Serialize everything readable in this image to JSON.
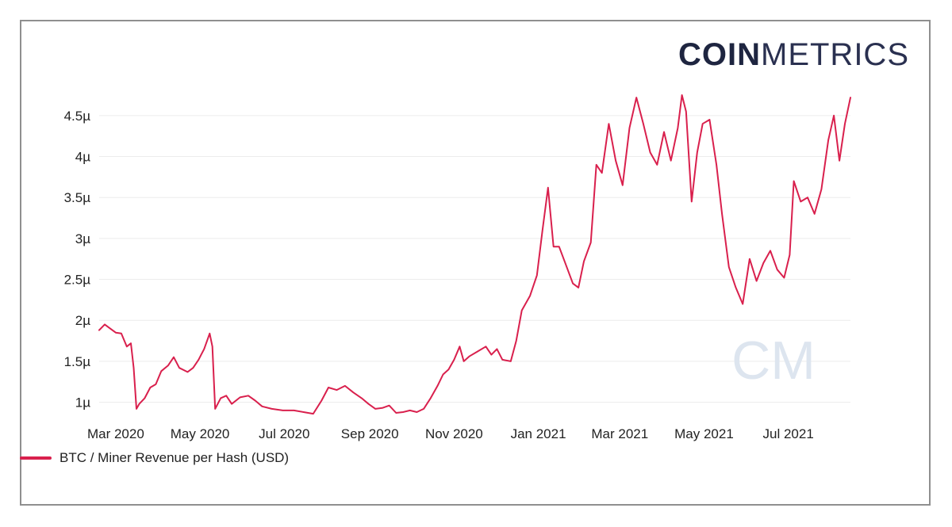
{
  "logo": {
    "bold": "COIN",
    "light": "METRICS",
    "color": "#1e2540"
  },
  "watermark": {
    "text": "CM",
    "color": "#dde5ef"
  },
  "chart_data": {
    "type": "line",
    "title": "",
    "xlabel": "",
    "ylabel": "",
    "x_tick_labels": [
      "Mar 2020",
      "May 2020",
      "Jul 2020",
      "Sep 2020",
      "Nov 2020",
      "Jan 2021",
      "Mar 2021",
      "May 2021",
      "Jul 2021"
    ],
    "y_tick_labels": [
      "1µ",
      "1.5µ",
      "2µ",
      "2.5µ",
      "3µ",
      "3.5µ",
      "4µ",
      "4.5µ"
    ],
    "y_tick_values": [
      1.0,
      1.5,
      2.0,
      2.5,
      3.0,
      3.5,
      4.0,
      4.5
    ],
    "x_start": "2020-02-18",
    "x_end": "2021-08-15",
    "ylim": [
      0.88,
      4.75
    ],
    "y_unit": "µ",
    "grid": true,
    "legend_position": "bottom-left",
    "series": [
      {
        "name": "BTC / Miner Revenue per Hash (USD)",
        "color": "#d9204d",
        "points": [
          [
            "2020-02-18",
            1.88
          ],
          [
            "2020-02-22",
            1.95
          ],
          [
            "2020-02-26",
            1.9
          ],
          [
            "2020-03-01",
            1.85
          ],
          [
            "2020-03-05",
            1.84
          ],
          [
            "2020-03-09",
            1.68
          ],
          [
            "2020-03-12",
            1.72
          ],
          [
            "2020-03-14",
            1.42
          ],
          [
            "2020-03-16",
            0.92
          ],
          [
            "2020-03-18",
            0.98
          ],
          [
            "2020-03-22",
            1.05
          ],
          [
            "2020-03-26",
            1.18
          ],
          [
            "2020-03-30",
            1.22
          ],
          [
            "2020-04-03",
            1.38
          ],
          [
            "2020-04-08",
            1.45
          ],
          [
            "2020-04-12",
            1.55
          ],
          [
            "2020-04-16",
            1.42
          ],
          [
            "2020-04-22",
            1.37
          ],
          [
            "2020-04-26",
            1.42
          ],
          [
            "2020-04-30",
            1.52
          ],
          [
            "2020-05-04",
            1.65
          ],
          [
            "2020-05-08",
            1.84
          ],
          [
            "2020-05-10",
            1.68
          ],
          [
            "2020-05-12",
            0.92
          ],
          [
            "2020-05-16",
            1.05
          ],
          [
            "2020-05-20",
            1.08
          ],
          [
            "2020-05-24",
            0.98
          ],
          [
            "2020-05-30",
            1.06
          ],
          [
            "2020-06-05",
            1.08
          ],
          [
            "2020-06-10",
            1.02
          ],
          [
            "2020-06-15",
            0.95
          ],
          [
            "2020-06-22",
            0.92
          ],
          [
            "2020-06-30",
            0.9
          ],
          [
            "2020-07-08",
            0.9
          ],
          [
            "2020-07-15",
            0.88
          ],
          [
            "2020-07-22",
            0.86
          ],
          [
            "2020-07-28",
            1.02
          ],
          [
            "2020-08-02",
            1.18
          ],
          [
            "2020-08-08",
            1.15
          ],
          [
            "2020-08-14",
            1.2
          ],
          [
            "2020-08-20",
            1.12
          ],
          [
            "2020-08-26",
            1.05
          ],
          [
            "2020-08-31",
            0.98
          ],
          [
            "2020-09-05",
            0.92
          ],
          [
            "2020-09-10",
            0.93
          ],
          [
            "2020-09-15",
            0.96
          ],
          [
            "2020-09-20",
            0.87
          ],
          [
            "2020-09-25",
            0.88
          ],
          [
            "2020-09-30",
            0.9
          ],
          [
            "2020-10-05",
            0.88
          ],
          [
            "2020-10-10",
            0.92
          ],
          [
            "2020-10-15",
            1.05
          ],
          [
            "2020-10-20",
            1.2
          ],
          [
            "2020-10-24",
            1.34
          ],
          [
            "2020-10-28",
            1.4
          ],
          [
            "2020-11-01",
            1.52
          ],
          [
            "2020-11-05",
            1.68
          ],
          [
            "2020-11-08",
            1.5
          ],
          [
            "2020-11-12",
            1.56
          ],
          [
            "2020-11-18",
            1.62
          ],
          [
            "2020-11-24",
            1.68
          ],
          [
            "2020-11-28",
            1.58
          ],
          [
            "2020-12-02",
            1.65
          ],
          [
            "2020-12-06",
            1.52
          ],
          [
            "2020-12-12",
            1.5
          ],
          [
            "2020-12-16",
            1.75
          ],
          [
            "2020-12-20",
            2.12
          ],
          [
            "2020-12-26",
            2.3
          ],
          [
            "2020-12-31",
            2.55
          ],
          [
            "2021-01-04",
            3.1
          ],
          [
            "2021-01-08",
            3.62
          ],
          [
            "2021-01-12",
            2.9
          ],
          [
            "2021-01-16",
            2.9
          ],
          [
            "2021-01-20",
            2.72
          ],
          [
            "2021-01-26",
            2.45
          ],
          [
            "2021-01-30",
            2.4
          ],
          [
            "2021-02-03",
            2.72
          ],
          [
            "2021-02-08",
            2.95
          ],
          [
            "2021-02-12",
            3.9
          ],
          [
            "2021-02-16",
            3.8
          ],
          [
            "2021-02-21",
            4.4
          ],
          [
            "2021-02-26",
            3.95
          ],
          [
            "2021-03-03",
            3.65
          ],
          [
            "2021-03-08",
            4.35
          ],
          [
            "2021-03-13",
            4.72
          ],
          [
            "2021-03-18",
            4.4
          ],
          [
            "2021-03-23",
            4.05
          ],
          [
            "2021-03-28",
            3.9
          ],
          [
            "2021-04-02",
            4.3
          ],
          [
            "2021-04-07",
            3.95
          ],
          [
            "2021-04-12",
            4.35
          ],
          [
            "2021-04-15",
            4.75
          ],
          [
            "2021-04-18",
            4.55
          ],
          [
            "2021-04-22",
            3.45
          ],
          [
            "2021-04-26",
            4.05
          ],
          [
            "2021-04-30",
            4.4
          ],
          [
            "2021-05-05",
            4.45
          ],
          [
            "2021-05-10",
            3.9
          ],
          [
            "2021-05-14",
            3.3
          ],
          [
            "2021-05-19",
            2.65
          ],
          [
            "2021-05-24",
            2.4
          ],
          [
            "2021-05-29",
            2.2
          ],
          [
            "2021-06-03",
            2.75
          ],
          [
            "2021-06-08",
            2.48
          ],
          [
            "2021-06-13",
            2.7
          ],
          [
            "2021-06-18",
            2.85
          ],
          [
            "2021-06-23",
            2.62
          ],
          [
            "2021-06-28",
            2.52
          ],
          [
            "2021-07-02",
            2.8
          ],
          [
            "2021-07-05",
            3.7
          ],
          [
            "2021-07-10",
            3.45
          ],
          [
            "2021-07-15",
            3.5
          ],
          [
            "2021-07-20",
            3.3
          ],
          [
            "2021-07-25",
            3.6
          ],
          [
            "2021-07-30",
            4.2
          ],
          [
            "2021-08-03",
            4.5
          ],
          [
            "2021-08-07",
            3.95
          ],
          [
            "2021-08-11",
            4.4
          ],
          [
            "2021-08-15",
            4.72
          ]
        ]
      }
    ]
  }
}
